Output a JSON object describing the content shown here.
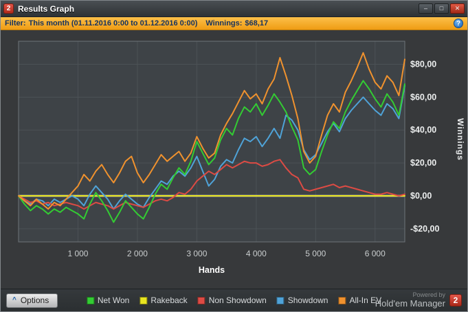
{
  "window": {
    "title": "Results Graph",
    "icon_text": "2",
    "controls": {
      "minimize": "–",
      "maximize": "□",
      "close": "✕"
    }
  },
  "filter": {
    "label": "Filter:",
    "value": "This month (01.11.2016 0:00 to 01.12.2016 0:00)",
    "winnings_label": "Winnings:",
    "winnings_value": "$68,17",
    "help_icon": "?"
  },
  "legend": [
    {
      "label": "Net Won",
      "color": "#33cc33"
    },
    {
      "label": "Rakeback",
      "color": "#e8e520"
    },
    {
      "label": "Non Showdown",
      "color": "#dd4b44"
    },
    {
      "label": "Showdown",
      "color": "#4fa3d8"
    },
    {
      "label": "All-In EV",
      "color": "#f0922e"
    }
  ],
  "footer": {
    "collapse_icon": "^",
    "options_label": "Options",
    "powered_by": "Powered by",
    "brand": "Hold'em Manager",
    "brand_logo": "2"
  },
  "chart_data": {
    "type": "line",
    "title": "",
    "xlabel": "Hands",
    "ylabel": "Winnings",
    "xlim": [
      0,
      6500
    ],
    "ylim": [
      -28,
      94
    ],
    "x_step": 100,
    "grid": true,
    "legend_position": "bottom",
    "plot_bg": "#3e4347",
    "grid_color": "#4c5256",
    "border_color": "#6e7478",
    "zero_line": {
      "value": 0,
      "color": "#ffffff"
    },
    "xticks": [
      {
        "value": 1000,
        "label": "1 000"
      },
      {
        "value": 2000,
        "label": "2 000"
      },
      {
        "value": 3000,
        "label": "3 000"
      },
      {
        "value": 4000,
        "label": "4 000"
      },
      {
        "value": 5000,
        "label": "5 000"
      },
      {
        "value": 6000,
        "label": "6 000"
      }
    ],
    "yticks": [
      {
        "value": 80,
        "label": "$80,00"
      },
      {
        "value": 60,
        "label": "$60,00"
      },
      {
        "value": 40,
        "label": "$40,00"
      },
      {
        "value": 20,
        "label": "$20,00"
      },
      {
        "value": 0,
        "label": "$0,00"
      },
      {
        "value": -20,
        "label": "-$20,00"
      }
    ],
    "series": [
      {
        "name": "Rakeback",
        "color": "#e8e520",
        "values": [
          0,
          0,
          0,
          0,
          0,
          0,
          0,
          0,
          0,
          0,
          0,
          0,
          0,
          0,
          0,
          0,
          0,
          0,
          0,
          0,
          0,
          0,
          0,
          0,
          0,
          0,
          0,
          0,
          0,
          0,
          0,
          0,
          0,
          0,
          0,
          0,
          0,
          0,
          0,
          0,
          0,
          0,
          0,
          0,
          0,
          0,
          0,
          0,
          0,
          0,
          0,
          0,
          0,
          0,
          0,
          0,
          0,
          0,
          0,
          0,
          0,
          0,
          0,
          0,
          0,
          0
        ]
      },
      {
        "name": "Showdown",
        "color": "#4fa3d8",
        "values": [
          0,
          -3,
          -5,
          -2,
          -3,
          -6,
          -2,
          -4,
          -2,
          0,
          -2,
          -6,
          1,
          6,
          2,
          -2,
          -8,
          -3,
          1,
          -2,
          -5,
          -7,
          -1,
          4,
          9,
          7,
          12,
          15,
          12,
          17,
          24,
          15,
          6,
          10,
          18,
          22,
          20,
          28,
          35,
          33,
          36,
          30,
          35,
          41,
          35,
          49,
          46,
          40,
          28,
          22,
          25,
          32,
          39,
          44,
          39,
          47,
          52,
          56,
          60,
          56,
          52,
          49,
          56,
          53,
          47,
          67
        ]
      },
      {
        "name": "Non Showdown",
        "color": "#dd4b44",
        "values": [
          0,
          -2,
          -4,
          -3,
          -5,
          -4,
          -6,
          -5,
          -4,
          -5,
          -6,
          -8,
          -6,
          -4,
          -5,
          -6,
          -8,
          -6,
          -4,
          -5,
          -6,
          -7,
          -5,
          -3,
          -2,
          -3,
          -1,
          2,
          1,
          4,
          9,
          12,
          15,
          13,
          16,
          19,
          17,
          19,
          21,
          20,
          20,
          18,
          19,
          21,
          22,
          17,
          13,
          11,
          4,
          3,
          4,
          5,
          6,
          7,
          5,
          6,
          5,
          4,
          3,
          2,
          1,
          1,
          2,
          1,
          0,
          1
        ]
      },
      {
        "name": "Net Won",
        "color": "#33cc33",
        "values": [
          0,
          -5,
          -9,
          -6,
          -8,
          -11,
          -8,
          -10,
          -7,
          -9,
          -11,
          -14,
          -5,
          2,
          -3,
          -9,
          -16,
          -10,
          -3,
          -7,
          -11,
          -14,
          -7,
          1,
          7,
          4,
          11,
          17,
          13,
          21,
          33,
          26,
          19,
          23,
          34,
          41,
          37,
          47,
          54,
          51,
          56,
          49,
          55,
          62,
          57,
          51,
          42,
          34,
          17,
          13,
          16,
          27,
          37,
          45,
          41,
          51,
          58,
          64,
          70,
          65,
          59,
          54,
          62,
          57,
          49,
          68
        ]
      },
      {
        "name": "All-In EV",
        "color": "#f0922e",
        "values": [
          0,
          -3,
          -6,
          -2,
          -5,
          -8,
          -4,
          -6,
          -2,
          2,
          6,
          13,
          9,
          15,
          19,
          13,
          8,
          14,
          21,
          24,
          14,
          8,
          13,
          19,
          25,
          21,
          24,
          27,
          21,
          26,
          36,
          29,
          23,
          26,
          37,
          44,
          50,
          57,
          64,
          59,
          62,
          56,
          65,
          71,
          84,
          73,
          61,
          47,
          27,
          20,
          24,
          37,
          49,
          56,
          51,
          63,
          70,
          78,
          87,
          77,
          69,
          65,
          73,
          69,
          61,
          83
        ]
      }
    ]
  }
}
